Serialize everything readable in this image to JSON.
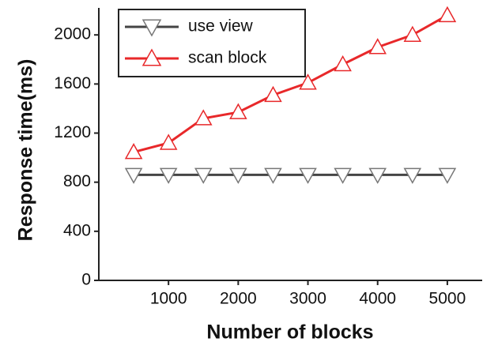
{
  "chart_data": {
    "type": "line",
    "x_label": "Number of blocks",
    "y_label": "Response time(ms)",
    "x": [
      500,
      1000,
      1500,
      2000,
      2500,
      3000,
      3500,
      4000,
      4500,
      5000
    ],
    "series": [
      {
        "name": "use view",
        "color": "#444444",
        "marker": "triangle-down",
        "values": [
          860,
          860,
          860,
          860,
          860,
          860,
          860,
          860,
          860,
          860
        ]
      },
      {
        "name": "scan block",
        "color": "#e8282a",
        "marker": "triangle-up",
        "values": [
          1045,
          1120,
          1320,
          1370,
          1510,
          1610,
          1760,
          1900,
          2000,
          2160
        ]
      }
    ],
    "xlim": [
      0,
      5500
    ],
    "xticks": [
      1000,
      2000,
      3000,
      4000,
      5000
    ],
    "ylim": [
      0,
      2220
    ],
    "yticks": [
      0,
      400,
      800,
      1200,
      1600,
      2000
    ],
    "legend": "upper left"
  }
}
